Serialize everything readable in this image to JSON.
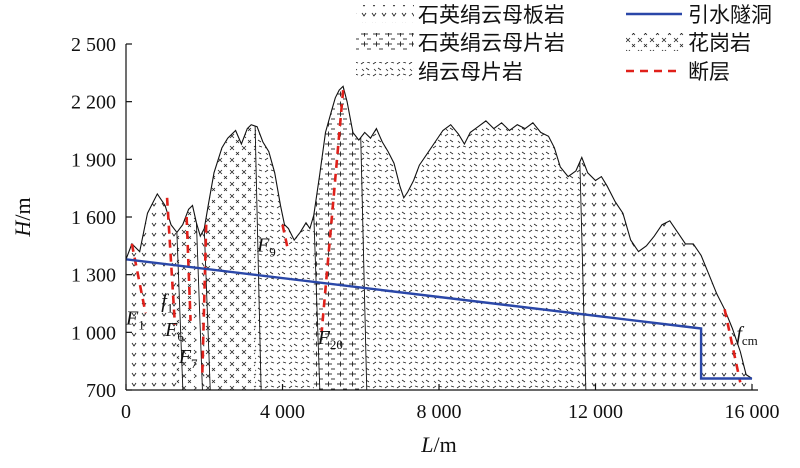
{
  "chart_data": {
    "type": "area",
    "xlabel": {
      "main": "L",
      "unit": "/m"
    },
    "ylabel": {
      "main": "H",
      "unit": "/m"
    },
    "xlim": [
      0,
      16000
    ],
    "ylim": [
      700,
      2500
    ],
    "x_ticks": [
      0,
      4000,
      8000,
      12000,
      16000
    ],
    "x_tick_labels": [
      "0",
      "4 000",
      "8 000",
      "12 000",
      "16 000"
    ],
    "y_ticks": [
      700,
      1000,
      1300,
      1600,
      1900,
      2200,
      2500
    ],
    "y_tick_labels": [
      "700",
      "1 000",
      "1 300",
      "1 600",
      "1 900",
      "2 200",
      "2 500"
    ],
    "legend": {
      "placement": "top-right",
      "entries": [
        {
          "key": "schist_qs",
          "label": "石英绢云母板岩"
        },
        {
          "key": "schist_qp",
          "label": "石英绢云母片岩"
        },
        {
          "key": "schist_s",
          "label": "绢云母片岩"
        },
        {
          "key": "tunnel",
          "label": "引水隧洞"
        },
        {
          "key": "granite",
          "label": "花岗岩"
        },
        {
          "key": "fault",
          "label": "断层"
        }
      ]
    },
    "terrain_profile": [
      [
        0,
        1380
      ],
      [
        150,
        1460
      ],
      [
        350,
        1420
      ],
      [
        550,
        1620
      ],
      [
        800,
        1720
      ],
      [
        1000,
        1660
      ],
      [
        1150,
        1560
      ],
      [
        1300,
        1520
      ],
      [
        1450,
        1560
      ],
      [
        1600,
        1640
      ],
      [
        1700,
        1660
      ],
      [
        1800,
        1570
      ],
      [
        1900,
        1500
      ],
      [
        2000,
        1540
      ],
      [
        2100,
        1660
      ],
      [
        2250,
        1830
      ],
      [
        2450,
        1960
      ],
      [
        2600,
        2010
      ],
      [
        2800,
        2050
      ],
      [
        2950,
        1980
      ],
      [
        3100,
        2060
      ],
      [
        3200,
        2080
      ],
      [
        3350,
        2070
      ],
      [
        3500,
        1990
      ],
      [
        3650,
        1940
      ],
      [
        3800,
        1830
      ],
      [
        3950,
        1660
      ],
      [
        4050,
        1560
      ],
      [
        4150,
        1540
      ],
      [
        4300,
        1480
      ],
      [
        4450,
        1520
      ],
      [
        4600,
        1570
      ],
      [
        4700,
        1540
      ],
      [
        4800,
        1610
      ],
      [
        4950,
        1820
      ],
      [
        5100,
        2040
      ],
      [
        5250,
        2150
      ],
      [
        5350,
        2220
      ],
      [
        5450,
        2260
      ],
      [
        5550,
        2280
      ],
      [
        5650,
        2200
      ],
      [
        5800,
        2040
      ],
      [
        5950,
        2000
      ],
      [
        6100,
        2040
      ],
      [
        6250,
        2010
      ],
      [
        6400,
        2060
      ],
      [
        6550,
        1990
      ],
      [
        6700,
        1940
      ],
      [
        6850,
        1880
      ],
      [
        7000,
        1760
      ],
      [
        7100,
        1700
      ],
      [
        7200,
        1730
      ],
      [
        7350,
        1790
      ],
      [
        7500,
        1870
      ],
      [
        7700,
        1930
      ],
      [
        7900,
        1990
      ],
      [
        8100,
        2050
      ],
      [
        8300,
        2080
      ],
      [
        8500,
        2030
      ],
      [
        8650,
        1980
      ],
      [
        8800,
        2040
      ],
      [
        9000,
        2070
      ],
      [
        9200,
        2100
      ],
      [
        9400,
        2060
      ],
      [
        9600,
        2090
      ],
      [
        9800,
        2050
      ],
      [
        10000,
        2080
      ],
      [
        10200,
        2060
      ],
      [
        10400,
        2090
      ],
      [
        10600,
        2040
      ],
      [
        10800,
        2020
      ],
      [
        10950,
        1960
      ],
      [
        11100,
        1860
      ],
      [
        11300,
        1810
      ],
      [
        11500,
        1840
      ],
      [
        11650,
        1910
      ],
      [
        11800,
        1830
      ],
      [
        12000,
        1790
      ],
      [
        12150,
        1810
      ],
      [
        12300,
        1760
      ],
      [
        12500,
        1680
      ],
      [
        12700,
        1620
      ],
      [
        12900,
        1480
      ],
      [
        13100,
        1420
      ],
      [
        13300,
        1450
      ],
      [
        13500,
        1500
      ],
      [
        13700,
        1560
      ],
      [
        13900,
        1580
      ],
      [
        14100,
        1520
      ],
      [
        14300,
        1460
      ],
      [
        14500,
        1460
      ],
      [
        14700,
        1400
      ],
      [
        14900,
        1300
      ],
      [
        15100,
        1200
      ],
      [
        15300,
        1120
      ],
      [
        15500,
        1020
      ],
      [
        15700,
        900
      ],
      [
        15850,
        780
      ],
      [
        16000,
        760
      ]
    ],
    "rock_zones": [
      {
        "rock": "schist_qs",
        "x": [
          0,
          1300
        ]
      },
      {
        "rock": "granite",
        "x": [
          1300,
          1800
        ]
      },
      {
        "rock": "schist_qs",
        "x": [
          1800,
          2000
        ]
      },
      {
        "rock": "granite",
        "x": [
          2000,
          3300
        ]
      },
      {
        "rock": "schist_s",
        "x": [
          3300,
          4800
        ]
      },
      {
        "rock": "schist_qp",
        "x": [
          4800,
          6000
        ]
      },
      {
        "rock": "schist_s",
        "x": [
          6000,
          11600
        ]
      },
      {
        "rock": "schist_qs",
        "x": [
          11600,
          16000
        ]
      }
    ],
    "tunnel": [
      [
        0,
        1380
      ],
      [
        14700,
        1020
      ],
      [
        14700,
        760
      ],
      [
        16000,
        760
      ]
    ],
    "faults": [
      {
        "name": "F",
        "sub": "1",
        "points": [
          [
            150,
            1460
          ],
          [
            500,
            1100
          ]
        ],
        "label_at": [
          0,
          1040
        ]
      },
      {
        "name": "f",
        "sub": "1",
        "points": [
          [
            1050,
            1700
          ],
          [
            1250,
            1040
          ]
        ],
        "label_at": [
          900,
          1130
        ]
      },
      {
        "name": "F",
        "sub": "6",
        "points": [
          [
            1550,
            1600
          ],
          [
            1650,
            1060
          ]
        ],
        "label_at": [
          1000,
          980
        ]
      },
      {
        "name": "F",
        "sub": "7",
        "points": [
          [
            2050,
            1560
          ],
          [
            1950,
            780
          ]
        ],
        "label_at": [
          1350,
          840
        ]
      },
      {
        "name": "F",
        "sub": "9",
        "points": [
          [
            4000,
            1560
          ],
          [
            4150,
            1420
          ]
        ],
        "label_at": [
          3350,
          1420
        ]
      },
      {
        "name": "F",
        "sub": "20",
        "points": [
          [
            5550,
            2260
          ],
          [
            5000,
            1000
          ]
        ],
        "label_at": [
          4900,
          940
        ]
      },
      {
        "name": "f",
        "sub": "cm",
        "points": [
          [
            15300,
            1120
          ],
          [
            15700,
            740
          ]
        ],
        "label_at": [
          15600,
          960
        ]
      }
    ]
  }
}
